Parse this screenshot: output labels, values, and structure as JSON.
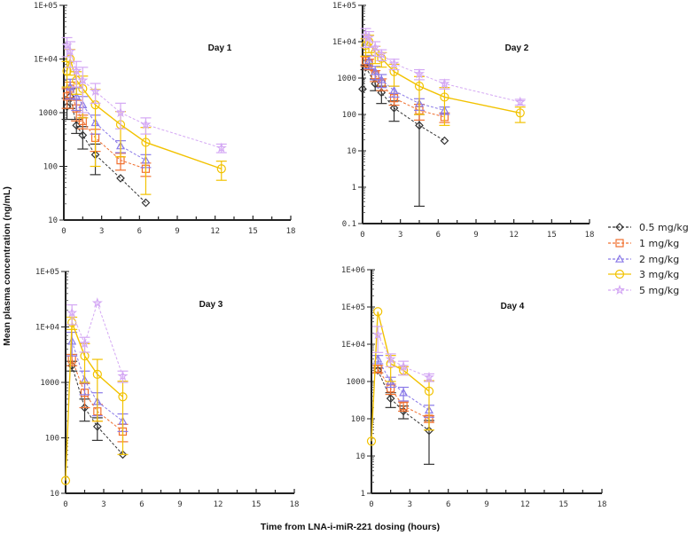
{
  "chart_data": {
    "type": "line",
    "ylabel": "Mean plasma concentration (ng/mL)",
    "xlabel": "Time from LNA-i-miR-221 dosing (hours)",
    "yscale": "log",
    "xlim": [
      0,
      18
    ],
    "xticks": [
      "0",
      "3",
      "6",
      "9",
      "12",
      "15",
      "18"
    ],
    "legend": {
      "placement": "right",
      "entries": [
        {
          "name": "0.5 mg/kg",
          "color": "#333333",
          "marker": "diamond",
          "dash": true
        },
        {
          "name": "1 mg/kg",
          "color": "#f07030",
          "marker": "square",
          "dash": true
        },
        {
          "name": "2 mg/kg",
          "color": "#8a7ae8",
          "marker": "triangle",
          "dash": true
        },
        {
          "name": "3 mg/kg",
          "color": "#f2c200",
          "marker": "circle",
          "dash": false
        },
        {
          "name": "5 mg/kg",
          "color": "#d4a8f4",
          "marker": "star",
          "dash": true
        }
      ]
    },
    "panels": [
      {
        "title": "Day 1",
        "ylim": [
          10,
          100000
        ],
        "yticks": [
          "10",
          "100",
          "1000",
          "1E+04",
          "1E+05"
        ],
        "series": [
          {
            "name": "0.5 mg/kg",
            "x": [
              0.25,
              0.5,
              1,
              1.5,
              2.5,
              4.5,
              6.5
            ],
            "y": [
              1300,
              2000,
              580,
              380,
              165,
              60,
              21
            ],
            "sd": [
              550,
              800,
              170,
              170,
              95,
              0,
              0
            ]
          },
          {
            "name": "1 mg/kg",
            "x": [
              0.25,
              0.5,
              1,
              1.5,
              2.5,
              4.5,
              6.5
            ],
            "y": [
              2000,
              2800,
              1200,
              700,
              340,
              130,
              90
            ],
            "sd": [
              800,
              900,
              500,
              200,
              150,
              45,
              25
            ]
          },
          {
            "name": "2 mg/kg",
            "x": [
              0.5,
              1,
              1.5,
              2.5,
              4.5,
              6.5
            ],
            "y": [
              3000,
              2000,
              1400,
              650,
              240,
              130
            ],
            "sd": [
              1200,
              900,
              600,
              250,
              60,
              35
            ]
          },
          {
            "name": "3 mg/kg",
            "x": [
              0.25,
              0.5,
              1,
              1.5,
              2.5,
              4.5,
              6.5,
              12.5
            ],
            "y": [
              6000,
              10000,
              4000,
              2800,
              1400,
              600,
              280,
              90
            ],
            "sd": [
              3000,
              5000,
              1800,
              2000,
              1300,
              450,
              250,
              35
            ]
          },
          {
            "name": "5 mg/kg",
            "x": [
              0.25,
              0.5,
              1,
              1.5,
              2.5,
              4.5,
              6.5,
              12.5
            ],
            "y": [
              18000,
              14000,
              6000,
              4000,
              2500,
              1000,
              600,
              220
            ],
            "sd": [
              7000,
              7000,
              3000,
              3000,
              1000,
              500,
              200,
              40
            ]
          }
        ]
      },
      {
        "title": "Day 2",
        "ylim": [
          0.1,
          100000
        ],
        "yticks": [
          "0.1",
          "1",
          "10",
          "100",
          "1000",
          "1E+04",
          "1E+05"
        ],
        "series": [
          {
            "name": "0.5 mg/kg",
            "x": [
              0,
              0.25,
              1,
              1.5,
              2.5,
              4.5,
              6.5
            ],
            "y": [
              500,
              2000,
              700,
              400,
              150,
              50,
              19
            ],
            "sd": [
              0,
              300,
              250,
              200,
              85,
              49.7,
              0
            ]
          },
          {
            "name": "1 mg/kg",
            "x": [
              0.25,
              0.5,
              1,
              1.5,
              2.5,
              4.5,
              6.5
            ],
            "y": [
              3000,
              2500,
              1200,
              700,
              280,
              130,
              85
            ],
            "sd": [
              900,
              800,
              400,
              250,
              100,
              60,
              25
            ]
          },
          {
            "name": "2 mg/kg",
            "x": [
              0.5,
              1,
              1.5,
              2.5,
              4.5,
              6.5
            ],
            "y": [
              3000,
              1500,
              900,
              450,
              200,
              130
            ],
            "sd": [
              1200,
              600,
              350,
              150,
              70,
              30
            ]
          },
          {
            "name": "3 mg/kg",
            "x": [
              0.25,
              0.5,
              1,
              1.5,
              2.5,
              4.5,
              6.5,
              12.5
            ],
            "y": [
              8000,
              10000,
              5000,
              3500,
              1500,
              600,
              300,
              110
            ],
            "sd": [
              4000,
              5000,
              2500,
              1500,
              900,
              500,
              250,
              50
            ]
          },
          {
            "name": "5 mg/kg",
            "x": [
              0.25,
              0.5,
              1,
              1.5,
              2.5,
              4.5,
              6.5,
              12.5
            ],
            "y": [
              15000,
              13000,
              7000,
              4500,
              2500,
              1300,
              700,
              220
            ],
            "sd": [
              8000,
              6000,
              3000,
              1500,
              800,
              400,
              200,
              40
            ]
          }
        ]
      },
      {
        "title": "Day 3",
        "ylim": [
          10,
          100000
        ],
        "yticks": [
          "10",
          "100",
          "1000",
          "1E+04",
          "1E+05"
        ],
        "series": [
          {
            "name": "0.5 mg/kg",
            "x": [
              0.5,
              1.5,
              2.5,
              4.5
            ],
            "y": [
              2000,
              350,
              160,
              50
            ],
            "sd": [
              400,
              150,
              70,
              0
            ]
          },
          {
            "name": "1 mg/kg",
            "x": [
              0.5,
              1.5,
              2.5,
              4.5
            ],
            "y": [
              2600,
              650,
              300,
              130
            ],
            "sd": [
              600,
              300,
              100,
              45
            ]
          },
          {
            "name": "2 mg/kg",
            "x": [
              0.5,
              1.5,
              2.5,
              4.5
            ],
            "y": [
              5500,
              1100,
              450,
              200
            ],
            "sd": [
              2500,
              500,
              200,
              70
            ]
          },
          {
            "name": "3 mg/kg",
            "x": [
              0,
              0.5,
              1.5,
              2.5,
              4.5
            ],
            "y": [
              17,
              12000,
              3000,
              1400,
              550
            ],
            "sd": [
              0,
              3000,
              2000,
              1200,
              500
            ]
          },
          {
            "name": "5 mg/kg",
            "x": [
              0.5,
              1.5,
              2.5,
              4.5
            ],
            "y": [
              18000,
              5000,
              27000,
              1300
            ],
            "sd": [
              7000,
              1500,
              0,
              300
            ]
          }
        ]
      },
      {
        "title": "Day 4",
        "ylim": [
          1,
          1000000
        ],
        "yticks": [
          "1",
          "10",
          "100",
          "1000",
          "1E+04",
          "1E+05",
          "1E+06"
        ],
        "series": [
          {
            "name": "0.5 mg/kg",
            "x": [
              0.5,
              1.5,
              2.5,
              4.5
            ],
            "y": [
              2000,
              350,
              160,
              48
            ],
            "sd": [
              300,
              150,
              60,
              42
            ]
          },
          {
            "name": "1 mg/kg",
            "x": [
              0.5,
              1.5,
              2.5,
              4.5
            ],
            "y": [
              2200,
              650,
              220,
              100
            ],
            "sd": [
              500,
              200,
              60,
              20
            ]
          },
          {
            "name": "2 mg/kg",
            "x": [
              0.5,
              1.5,
              2.5,
              4.5
            ],
            "y": [
              4000,
              1000,
              500,
              170
            ],
            "sd": [
              1000,
              300,
              200,
              60
            ]
          },
          {
            "name": "3 mg/kg",
            "x": [
              0,
              0.5,
              1.5,
              2.5,
              4.5
            ],
            "y": [
              25,
              75000,
              3000,
              2000,
              550
            ],
            "sd": [
              0,
              0,
              2000,
              500,
              500
            ]
          },
          {
            "name": "5 mg/kg",
            "x": [
              0.5,
              1.5,
              2.5,
              4.5
            ],
            "y": [
              18000,
              4000,
              2500,
              1300
            ],
            "sd": [
              12000,
              1500,
              1000,
              300
            ]
          }
        ]
      }
    ]
  }
}
